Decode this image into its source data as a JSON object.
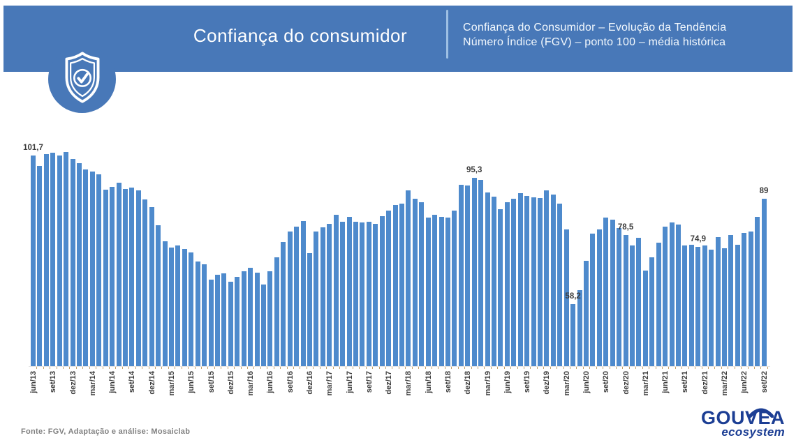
{
  "header": {
    "title": "Confiança do consumidor",
    "subtitle_line1": "Confiança do Consumidor – Evolução da Tendência",
    "subtitle_line2": "Número Índice (FGV) – ponto 100 – média histórica",
    "badge_icon": "shield-check-icon"
  },
  "chart_data": {
    "type": "bar",
    "title": "Confiança do Consumidor – Evolução da Tendência",
    "subtitle": "Número Índice (FGV) – ponto 100 – média histórica",
    "x_start": "jun/13",
    "x_end": "set/22",
    "x_frequency": "monthly",
    "ylim": [
      40,
      105
    ],
    "grid": false,
    "legend": false,
    "tick_every": 3,
    "tick_labels": [
      "jun/13",
      "set/13",
      "dez/13",
      "mar/14",
      "jun/14",
      "set/14",
      "dez/14",
      "mar/15",
      "jun/15",
      "set/15",
      "dez/15",
      "mar/16",
      "jun/16",
      "set/16",
      "dez/16",
      "mar/17",
      "jun/17",
      "set/17",
      "dez/17",
      "mar/18",
      "jun/18",
      "set/18",
      "dez/18",
      "mar/19",
      "jun/19",
      "set/19",
      "dez/19",
      "mar/20",
      "jun/20",
      "set/20",
      "dez/20",
      "mar/21",
      "jun/21",
      "set/21",
      "dez/21",
      "mar/22",
      "jun/22",
      "set/22"
    ],
    "values": [
      101.7,
      98.7,
      102.1,
      102.5,
      101.7,
      102.7,
      100.7,
      99.4,
      97.7,
      97.0,
      96.2,
      91.7,
      92.5,
      93.8,
      91.9,
      92.4,
      91.5,
      88.8,
      86.6,
      81.2,
      76.7,
      74.8,
      75.4,
      74.4,
      73.4,
      70.6,
      69.8,
      65.4,
      66.8,
      67.1,
      64.7,
      66.1,
      67.8,
      68.8,
      67.4,
      64.0,
      67.8,
      71.9,
      76.3,
      79.4,
      80.8,
      82.5,
      73.2,
      79.4,
      80.7,
      81.7,
      84.4,
      82.4,
      83.8,
      82.4,
      82.1,
      82.4,
      81.7,
      84.0,
      85.6,
      87.3,
      87.6,
      91.5,
      89.0,
      88.0,
      83.5,
      84.3,
      83.8,
      83.6,
      85.6,
      93.1,
      92.9,
      95.3,
      94.5,
      91.0,
      89.7,
      85.9,
      88.1,
      89.0,
      90.7,
      89.8,
      89.5,
      89.3,
      91.5,
      90.3,
      87.6,
      80.1,
      58.2,
      62.3,
      70.9,
      78.8,
      80.1,
      83.5,
      83.0,
      80.4,
      78.5,
      75.3,
      77.7,
      68.1,
      71.9,
      76.2,
      80.8,
      82.1,
      81.6,
      75.4,
      75.6,
      74.9,
      75.3,
      74.1,
      77.8,
      74.6,
      78.4,
      75.5,
      79.1,
      79.4,
      83.8,
      89.0
    ],
    "annotations": [
      {
        "index": 0,
        "label": "101,7"
      },
      {
        "index": 67,
        "label": "95,3"
      },
      {
        "index": 82,
        "label": "58,2"
      },
      {
        "index": 90,
        "label": "78,5"
      },
      {
        "index": 101,
        "label": "74,9"
      },
      {
        "index": 111,
        "label": "89"
      }
    ]
  },
  "footer": {
    "source": "Fonte: FGV, Adaptação e análise: Mosaiclab"
  },
  "logo": {
    "name": "GOUVEA",
    "tagline": "ecosystem"
  },
  "colors": {
    "band": "#4878B8",
    "bar": "#4E8ACC",
    "divider": "#9EC0E4",
    "logo_navy": "#1C3E94",
    "label_dark": "#3C3C3C",
    "axis_tick": "#C8A264",
    "source_gray": "#7F7F7F"
  }
}
